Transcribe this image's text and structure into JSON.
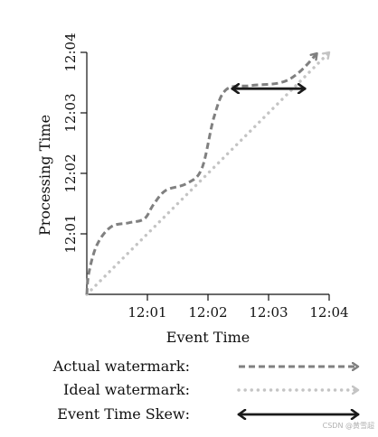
{
  "chart_data": {
    "type": "line",
    "xlabel": "Event Time",
    "ylabel": "Processing Time",
    "x_ticks": [
      "12:01",
      "12:02",
      "12:03",
      "12:04"
    ],
    "y_ticks": [
      "12:01",
      "12:02",
      "12:03",
      "12:04"
    ],
    "xlim": [
      "12:00",
      "12:04"
    ],
    "ylim": [
      "12:00",
      "12:04"
    ],
    "grid": false,
    "legend_position": "bottom",
    "series": [
      {
        "name": "Actual watermark:",
        "style": "dashed-arrow",
        "color": "#808080",
        "points": [
          [
            "12:00:00",
            "12:00:00"
          ],
          [
            "12:00:02",
            "12:00:21"
          ],
          [
            "12:00:10",
            "12:00:49"
          ],
          [
            "12:00:24",
            "12:01:07"
          ],
          [
            "12:00:42",
            "12:01:11"
          ],
          [
            "12:00:57",
            "12:01:15"
          ],
          [
            "12:01:06",
            "12:01:29"
          ],
          [
            "12:01:18",
            "12:01:43"
          ],
          [
            "12:01:39",
            "12:01:50"
          ],
          [
            "12:01:54",
            "12:02:05"
          ],
          [
            "12:02:06",
            "12:02:56"
          ],
          [
            "12:02:18",
            "12:03:23"
          ],
          [
            "12:02:42",
            "12:03:27"
          ],
          [
            "12:03:12",
            "12:03:30"
          ],
          [
            "12:03:30",
            "12:03:40"
          ],
          [
            "12:03:48",
            "12:03:59"
          ]
        ]
      },
      {
        "name": "Ideal watermark:",
        "style": "dotted-arrow",
        "color": "#c4c4c4",
        "points": [
          [
            "12:00:00",
            "12:00:00"
          ],
          [
            "12:04:00",
            "12:04:00"
          ]
        ]
      },
      {
        "name": "Event Time Skew:",
        "style": "double-arrow",
        "color": "#1a1a1a",
        "points": [
          [
            "12:02:24",
            "12:03:24"
          ],
          [
            "12:03:36",
            "12:03:24"
          ]
        ]
      }
    ]
  },
  "watermark": "CSDN @黄雪超",
  "colors": {
    "actual": "#808080",
    "ideal": "#c4c4c4",
    "skew": "#1a1a1a",
    "axis": "#111111"
  }
}
